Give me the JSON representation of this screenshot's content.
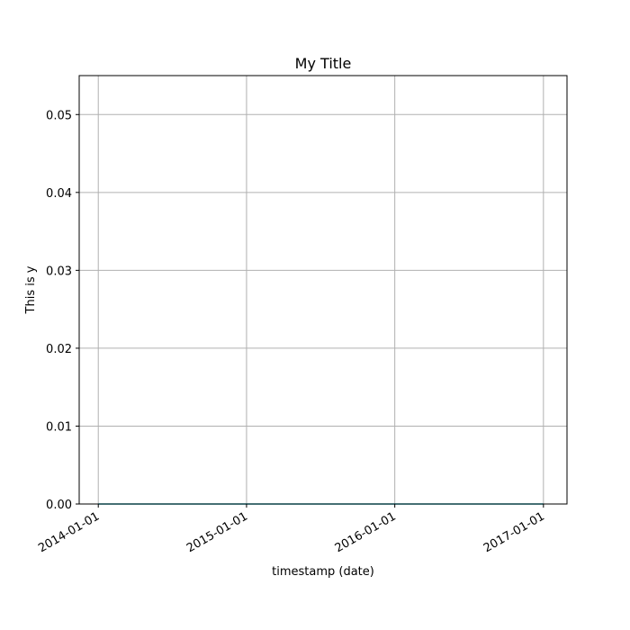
{
  "chart_data": {
    "type": "line",
    "title": "My Title",
    "xlabel": "timestamp (date)",
    "ylabel": "This is y",
    "x_ticks": [
      "2014-01-01",
      "2015-01-01",
      "2016-01-01",
      "2017-01-01"
    ],
    "y_ticks": [
      "0.00",
      "0.01",
      "0.02",
      "0.03",
      "0.04",
      "0.05"
    ],
    "y_tick_values": [
      0,
      0.01,
      0.02,
      0.03,
      0.04,
      0.05
    ],
    "ylim": [
      0,
      0.055
    ],
    "xlim": [
      "2013-11-15",
      "2017-02-28"
    ],
    "grid": true,
    "series": [
      {
        "color": "#17becf",
        "x": [
          "2014-01-01",
          "2015-01-01",
          "2016-01-01",
          "2017-01-01"
        ],
        "y": [
          0,
          0,
          0,
          0
        ]
      }
    ]
  }
}
